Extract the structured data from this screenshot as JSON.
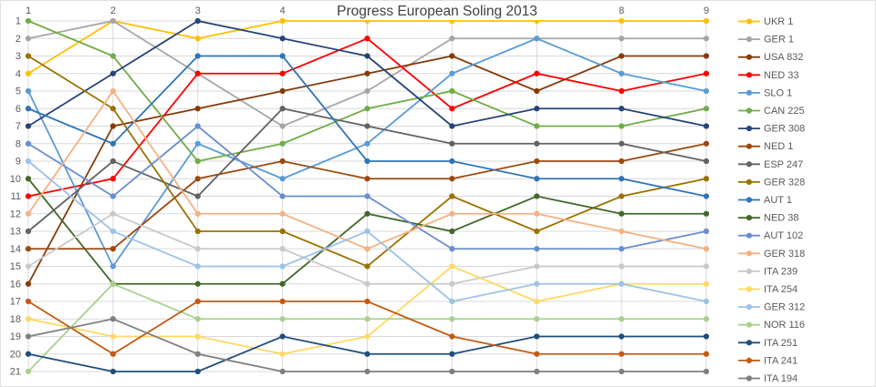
{
  "chart_data": {
    "type": "line",
    "title": "Progress European Soling 2013",
    "x_axis": {
      "position": "top",
      "ticks": [
        "1",
        "2",
        "3",
        "4",
        "5",
        "6",
        "7",
        "8",
        "9"
      ]
    },
    "y_axis": {
      "position": "left",
      "inverted": true,
      "min": 1,
      "max": 21,
      "ticks": [
        "1",
        "2",
        "3",
        "4",
        "5",
        "6",
        "7",
        "8",
        "9",
        "10",
        "11",
        "12",
        "13",
        "14",
        "15",
        "16",
        "17",
        "18",
        "19",
        "20",
        "21"
      ]
    },
    "grid": "full",
    "legend_position": "right",
    "axis_text_color": "#595959",
    "grid_color": "#d9d9d9",
    "series": [
      {
        "name": "UKR 1",
        "color": "#FFC000",
        "values": [
          4,
          1,
          2,
          1,
          1,
          1,
          1,
          1,
          1
        ]
      },
      {
        "name": "GER 1",
        "color": "#A6A6A6",
        "values": [
          2,
          1,
          4,
          7,
          5,
          2,
          2,
          2,
          2
        ]
      },
      {
        "name": "USA 832",
        "color": "#843C0C",
        "values": [
          16,
          7,
          6,
          5,
          4,
          3,
          5,
          3,
          3
        ]
      },
      {
        "name": "NED 33",
        "color": "#FF0000",
        "values": [
          11,
          10,
          4,
          4,
          2,
          6,
          4,
          5,
          4
        ]
      },
      {
        "name": "SLO 1",
        "color": "#5B9BD5",
        "values": [
          5,
          15,
          8,
          10,
          8,
          4,
          2,
          4,
          5
        ]
      },
      {
        "name": "CAN 225",
        "color": "#70AD47",
        "values": [
          1,
          3,
          9,
          8,
          6,
          5,
          7,
          7,
          6
        ]
      },
      {
        "name": "GER 308",
        "color": "#264478",
        "values": [
          7,
          4,
          1,
          2,
          3,
          7,
          6,
          6,
          7
        ]
      },
      {
        "name": "NED 1",
        "color": "#9E480E",
        "values": [
          14,
          14,
          10,
          9,
          10,
          10,
          9,
          9,
          8
        ]
      },
      {
        "name": "ESP 247",
        "color": "#636363",
        "values": [
          13,
          9,
          11,
          6,
          7,
          8,
          8,
          8,
          9
        ]
      },
      {
        "name": "GER 328",
        "color": "#997300",
        "values": [
          3,
          6,
          13,
          13,
          15,
          11,
          13,
          11,
          10
        ]
      },
      {
        "name": "AUT 1",
        "color": "#2E75B6",
        "values": [
          6,
          8,
          3,
          3,
          9,
          9,
          10,
          10,
          11
        ]
      },
      {
        "name": "NED 38",
        "color": "#43682B",
        "values": [
          10,
          16,
          16,
          16,
          12,
          13,
          11,
          12,
          12
        ]
      },
      {
        "name": "AUT 102",
        "color": "#698ED0",
        "values": [
          8,
          11,
          7,
          11,
          11,
          14,
          14,
          14,
          13
        ]
      },
      {
        "name": "GER 318",
        "color": "#F4B183",
        "values": [
          12,
          5,
          12,
          12,
          14,
          12,
          12,
          13,
          14
        ]
      },
      {
        "name": "ITA 239",
        "color": "#C9C9C9",
        "values": [
          15,
          12,
          14,
          14,
          16,
          16,
          15,
          15,
          15
        ]
      },
      {
        "name": "ITA 254",
        "color": "#FFD966",
        "values": [
          18,
          19,
          19,
          20,
          19,
          15,
          17,
          16,
          16
        ]
      },
      {
        "name": "GER 312",
        "color": "#9DC3E6",
        "values": [
          9,
          13,
          15,
          15,
          13,
          17,
          16,
          16,
          17
        ]
      },
      {
        "name": "NOR 116",
        "color": "#A9D18E",
        "values": [
          21,
          16,
          18,
          18,
          18,
          18,
          18,
          18,
          18
        ]
      },
      {
        "name": "ITA 251",
        "color": "#1F4E79",
        "values": [
          20,
          21,
          21,
          19,
          20,
          20,
          19,
          19,
          19
        ]
      },
      {
        "name": "ITA 241",
        "color": "#C55A11",
        "values": [
          17,
          20,
          17,
          17,
          17,
          19,
          20,
          20,
          20
        ]
      },
      {
        "name": "ITA 194",
        "color": "#7F7F7F",
        "values": [
          19,
          18,
          20,
          21,
          21,
          21,
          21,
          21,
          21
        ]
      }
    ]
  }
}
